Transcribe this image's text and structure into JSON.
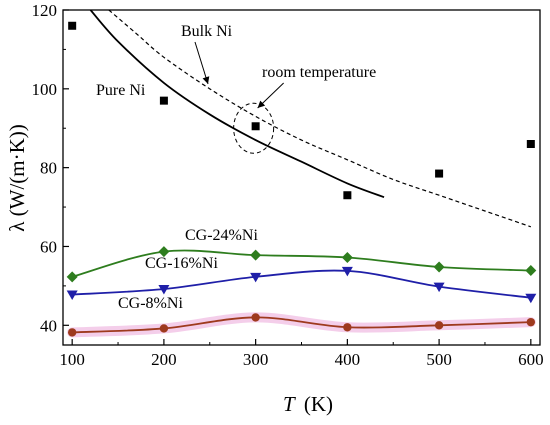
{
  "chart_data": {
    "type": "line",
    "xlabel_symbol": "T",
    "xlabel_unit": "(K)",
    "ylabel": "λ (W/(m·K))",
    "xlim": [
      90,
      610
    ],
    "ylim": [
      35,
      120
    ],
    "xticks": [
      100,
      200,
      300,
      400,
      500,
      600
    ],
    "yticks": [
      40,
      60,
      80,
      100,
      120
    ],
    "grid": false,
    "series": [
      {
        "name": "CG-24%Ni",
        "color": "#2e7d1e",
        "marker": "diamond",
        "x": [
          100,
          200,
          300,
          400,
          500,
          600
        ],
        "y": [
          52.3,
          58.7,
          57.8,
          57.2,
          54.8,
          53.9
        ]
      },
      {
        "name": "CG-16%Ni",
        "color": "#1f1fa8",
        "marker": "triangle-down",
        "x": [
          100,
          200,
          300,
          400,
          500,
          600
        ],
        "y": [
          47.8,
          49.2,
          52.3,
          53.8,
          49.8,
          47.0
        ]
      },
      {
        "name": "CG-8%Ni",
        "color": "#9e3a1e",
        "marker": "circle",
        "band_color": "#f2c6e6",
        "x": [
          100,
          200,
          300,
          400,
          500,
          600
        ],
        "y": [
          38.2,
          39.2,
          42.0,
          39.5,
          40.0,
          40.8
        ]
      }
    ],
    "pure_ni": {
      "name": "Pure Ni",
      "style": "solid",
      "x": [
        120,
        150,
        200,
        250,
        300,
        350,
        400,
        440
      ],
      "y": [
        120,
        112,
        101.5,
        93.5,
        87,
        81.5,
        76,
        72.5
      ]
    },
    "bulk_ni": {
      "name": "Bulk Ni",
      "style": "dashed",
      "x": [
        140,
        170,
        200,
        250,
        300,
        350,
        400,
        450,
        500,
        550,
        600
      ],
      "y": [
        120,
        114,
        108,
        100,
        93,
        87,
        82,
        77,
        73,
        69,
        65
      ]
    },
    "reference_points": {
      "marker": "square",
      "color": "#000000",
      "x": [
        100,
        200,
        300,
        400,
        500,
        600
      ],
      "y": [
        116,
        97,
        90.5,
        73,
        78.5,
        86
      ]
    },
    "annotations": {
      "room_temperature": "room temperature"
    }
  }
}
